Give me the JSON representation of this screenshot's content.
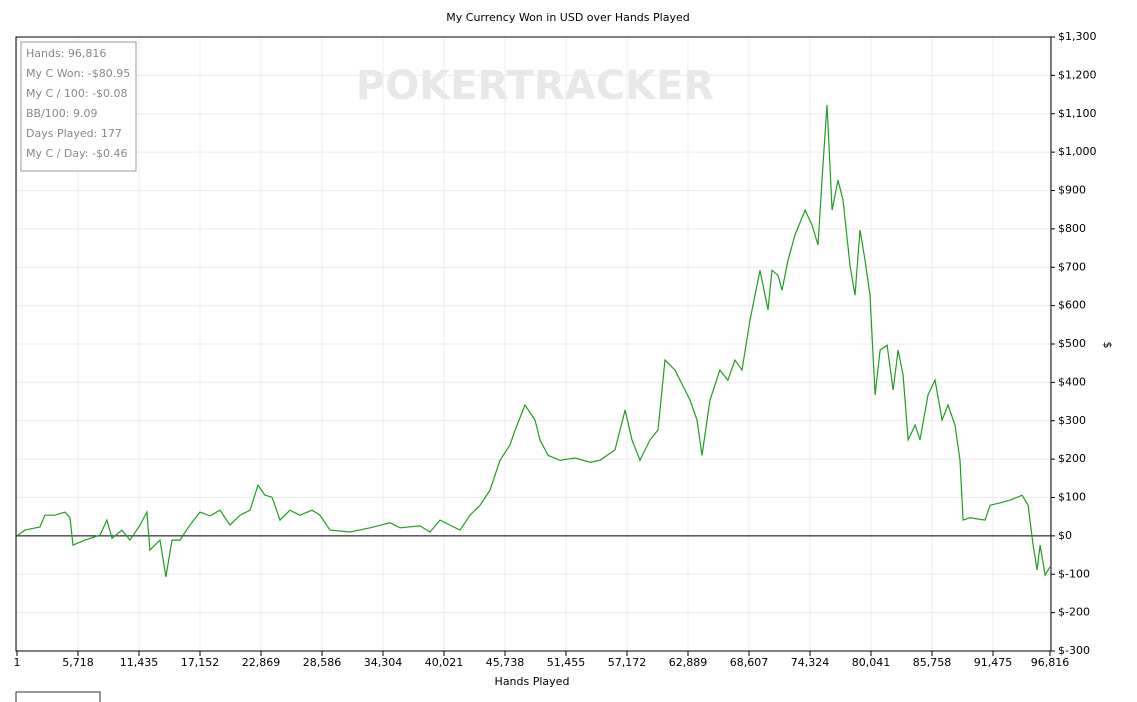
{
  "chart_data": {
    "type": "line",
    "title": "My Currency Won in USD over Hands Played",
    "x_label": "Hands Played",
    "y_label": "$",
    "watermark": "POKERTRACKER",
    "stats": [
      "Hands: 96,816",
      "My C Won: -$80.95",
      "My C / 100: -$0.08",
      "BB/100: 9.09",
      "Days Played: 177",
      "My C / Day: -$0.46"
    ],
    "color": "#1f9e1f",
    "grid": true,
    "xlim": [
      1,
      96816
    ],
    "ylim": [
      -300,
      1300
    ],
    "xticks": [
      1,
      {
        "value": 5718,
        "label": "5,718"
      },
      {
        "value": 11435,
        "label": "11,435"
      },
      {
        "value": 17152,
        "label": "17,152"
      },
      {
        "value": 22869,
        "label": "22,869"
      },
      {
        "value": 28586,
        "label": "28,586"
      },
      {
        "value": 34304,
        "label": "34,304"
      },
      {
        "value": 40021,
        "label": "40,021"
      },
      {
        "value": 45738,
        "label": "45,738"
      },
      {
        "value": 51455,
        "label": "51,455"
      },
      {
        "value": 57172,
        "label": "57,172"
      },
      {
        "value": 62889,
        "label": "62,889"
      },
      {
        "value": 68607,
        "label": "68,607"
      },
      {
        "value": 74324,
        "label": "74,324"
      },
      {
        "value": 80041,
        "label": "80,041"
      },
      {
        "value": 85758,
        "label": "85,758"
      },
      {
        "value": 91475,
        "label": "91,475"
      },
      {
        "value": 96816,
        "label": "96,816"
      }
    ],
    "yticks": [
      {
        "value": -300,
        "label": "$-300"
      },
      {
        "value": -200,
        "label": "$-200"
      },
      {
        "value": -100,
        "label": "$-100"
      },
      {
        "value": 0,
        "label": "$0"
      },
      {
        "value": 100,
        "label": "$100"
      },
      {
        "value": 200,
        "label": "$200"
      },
      {
        "value": 300,
        "label": "$300"
      },
      {
        "value": 400,
        "label": "$400"
      },
      {
        "value": 500,
        "label": "$500"
      },
      {
        "value": 600,
        "label": "$600"
      },
      {
        "value": 700,
        "label": "$700"
      },
      {
        "value": 800,
        "label": "$800"
      },
      {
        "value": 900,
        "label": "$900"
      },
      {
        "value": 1000,
        "label": "$1,000"
      },
      {
        "value": 1100,
        "label": "$1,100"
      },
      {
        "value": 1200,
        "label": "$1,200"
      },
      {
        "value": 1300,
        "label": "$1,300"
      }
    ],
    "x": [
      1,
      750,
      2150,
      2620,
      3560,
      4500,
      4970,
      5250,
      6370,
      7780,
      8430,
      8900,
      9840,
      10590,
      11530,
      12180,
      12460,
      12930,
      13400,
      13960,
      14530,
      15280,
      16210,
      17150,
      18090,
      19030,
      19960,
      20900,
      21840,
      22590,
      23240,
      23900,
      24650,
      25580,
      26520,
      27650,
      28400,
      29330,
      31210,
      33090,
      34960,
      35900,
      37770,
      38710,
      39650,
      40580,
      41520,
      42460,
      43400,
      44330,
      45270,
      46210,
      46680,
      47610,
      48550,
      49020,
      49770,
      50890,
      52300,
      53710,
      54640,
      56050,
      56990,
      57640,
      58390,
      59330,
      60080,
      60730,
      61670,
      62140,
      63080,
      63730,
      64200,
      64950,
      65880,
      66630,
      67290,
      67950,
      68700,
      69640,
      70390,
      70760,
      71320,
      71700,
      72260,
      72920,
      73860,
      74510,
      75070,
      75450,
      75920,
      76390,
      76950,
      77420,
      78070,
      78540,
      79010,
      79480,
      79950,
      80420,
      80890,
      81550,
      82110,
      82580,
      83050,
      83520,
      84180,
      84630,
      85380,
      86040,
      86700,
      87260,
      87910,
      88380,
      88670,
      89320,
      90730,
      91200,
      92130,
      93070,
      94200,
      94760,
      95230,
      95610,
      95890,
      96360,
      96816
    ],
    "values": [
      0,
      15,
      23,
      54,
      54,
      62,
      47,
      -24,
      -11,
      2,
      41,
      -6,
      15,
      -11,
      28,
      62,
      -37,
      -24,
      -11,
      -107,
      -11,
      -11,
      28,
      62,
      52,
      67,
      28,
      54,
      67,
      132,
      106,
      101,
      41,
      67,
      54,
      67,
      54,
      15,
      10,
      21,
      34,
      21,
      26,
      10,
      41,
      28,
      15,
      54,
      80,
      119,
      197,
      237,
      276,
      341,
      302,
      250,
      210,
      197,
      203,
      192,
      197,
      224,
      328,
      250,
      197,
      250,
      276,
      458,
      432,
      406,
      354,
      302,
      210,
      354,
      432,
      406,
      458,
      432,
      562,
      692,
      589,
      692,
      679,
      640,
      718,
      784,
      849,
      810,
      758,
      927,
      1123,
      849,
      927,
      875,
      705,
      627,
      797,
      719,
      627,
      367,
      484,
      497,
      380,
      484,
      419,
      250,
      289,
      250,
      367,
      406,
      302,
      341,
      289,
      197,
      41,
      47,
      41,
      80,
      86,
      93,
      106,
      80,
      -24,
      -89,
      -24,
      -102,
      -80.95
    ]
  }
}
